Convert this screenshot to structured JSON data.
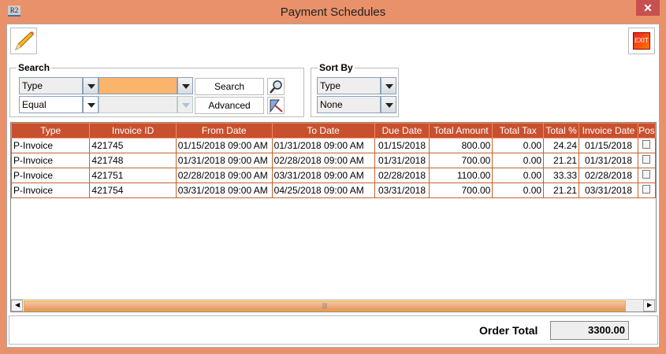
{
  "window": {
    "title": "Payment Schedules",
    "app_icon_text": "R2"
  },
  "toolbar": {
    "edit_icon": "pencil-icon",
    "exit_label": "EXIT"
  },
  "search": {
    "legend": "Search",
    "field": "Type",
    "operator": "Equal",
    "value": "",
    "search_label": "Search",
    "advanced_label": "Advanced"
  },
  "sort": {
    "legend": "Sort By",
    "primary": "Type",
    "secondary": "None"
  },
  "table": {
    "columns": [
      "Type",
      "Invoice ID",
      "From Date",
      "To Date",
      "Due Date",
      "Total Amount",
      "Total Tax",
      "Total %",
      "Invoice Date",
      "Pos"
    ],
    "rows": [
      [
        "P-Invoice",
        "421745",
        "01/15/2018 09:00 AM",
        "01/31/2018 09:00 AM",
        "01/15/2018",
        "800.00",
        "0.00",
        "24.24",
        "01/15/2018"
      ],
      [
        "P-Invoice",
        "421748",
        "01/31/2018 09:00 AM",
        "02/28/2018 09:00 AM",
        "01/31/2018",
        "700.00",
        "0.00",
        "21.21",
        "01/31/2018"
      ],
      [
        "P-Invoice",
        "421751",
        "02/28/2018 09:00 AM",
        "03/31/2018 09:00 AM",
        "02/28/2018",
        "1100.00",
        "0.00",
        "33.33",
        "02/28/2018"
      ],
      [
        "P-Invoice",
        "421754",
        "03/31/2018 09:00 AM",
        "04/25/2018 09:00 AM",
        "03/31/2018",
        "700.00",
        "0.00",
        "21.21",
        "03/31/2018"
      ]
    ]
  },
  "footer": {
    "order_total_label": "Order Total",
    "order_total": "3300.00"
  },
  "colors": {
    "frame": "#e8916a",
    "header": "#c9502e",
    "search_value": "#fbb46c"
  }
}
